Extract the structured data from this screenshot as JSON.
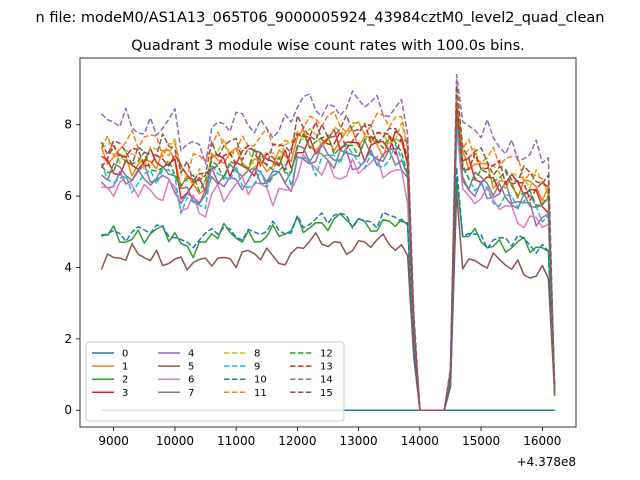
{
  "suptitle": "n file: modeM0/AS1A13_065T06_9000005924_43984cztM0_level2_quad_clean",
  "chart_data": {
    "type": "line",
    "title": "Quadrant 3 module wise count rates with 100.0s bins.",
    "xlabel": "",
    "ylabel": "",
    "x_offset_label": "+4.378e8",
    "x_offset": 437800000,
    "xlim": [
      8450,
      16550
    ],
    "ylim": [
      -0.47,
      9.87
    ],
    "xticks": [
      9000,
      10000,
      11000,
      12000,
      13000,
      14000,
      15000,
      16000
    ],
    "xtick_labels": [
      "9000",
      "10000",
      "11000",
      "12000",
      "13000",
      "14000",
      "15000",
      "16000"
    ],
    "yticks": [
      0,
      2,
      4,
      6,
      8
    ],
    "ytick_labels": [
      "0",
      "2",
      "4",
      "6",
      "8"
    ],
    "grid": false,
    "legend_position": "lower-left",
    "legend_columns": 4,
    "x_start": 8800,
    "x_step": 100,
    "gap_start": 14000,
    "gap_end": 14400,
    "x_end": 16200,
    "series": [
      {
        "name": "0",
        "color": "#1f77b4",
        "dash": "solid",
        "base": 0,
        "amp": 0,
        "const": true
      },
      {
        "name": "1",
        "color": "#ff7f0e",
        "dash": "solid",
        "base": 7.0,
        "amp": 0.45
      },
      {
        "name": "2",
        "color": "#2ca02c",
        "dash": "solid",
        "base": 4.9,
        "amp": 0.35
      },
      {
        "name": "3",
        "color": "#d62728",
        "dash": "solid",
        "base": 6.9,
        "amp": 0.45
      },
      {
        "name": "4",
        "color": "#9467bd",
        "dash": "solid",
        "base": 6.5,
        "amp": 0.45
      },
      {
        "name": "5",
        "color": "#8c564b",
        "dash": "solid",
        "base": 4.3,
        "amp": 0.35
      },
      {
        "name": "6",
        "color": "#e377c2",
        "dash": "solid",
        "base": 6.2,
        "amp": 0.45
      },
      {
        "name": "7",
        "color": "#7f7f7f",
        "dash": "solid",
        "base": 6.6,
        "amp": 0.4
      },
      {
        "name": "8",
        "color": "#bcbd22",
        "dash": "dashed",
        "base": 7.2,
        "amp": 0.45
      },
      {
        "name": "9",
        "color": "#17becf",
        "dash": "dashed",
        "base": 6.5,
        "amp": 0.45
      },
      {
        "name": "10",
        "color": "#1f77b4",
        "dash": "dashed",
        "base": 5.0,
        "amp": 0.3
      },
      {
        "name": "11",
        "color": "#ff7f0e",
        "dash": "dashed",
        "base": 7.5,
        "amp": 0.45
      },
      {
        "name": "12",
        "color": "#2ca02c",
        "dash": "dashed",
        "base": 6.9,
        "amp": 0.4
      },
      {
        "name": "13",
        "color": "#d62728",
        "dash": "dashed",
        "base": 7.1,
        "amp": 0.45
      },
      {
        "name": "14",
        "color": "#9467bd",
        "dash": "dashed",
        "base": 8.0,
        "amp": 0.5
      },
      {
        "name": "15",
        "color": "#8c564b",
        "dash": "dashed",
        "base": 7.3,
        "amp": 0.45
      }
    ]
  }
}
